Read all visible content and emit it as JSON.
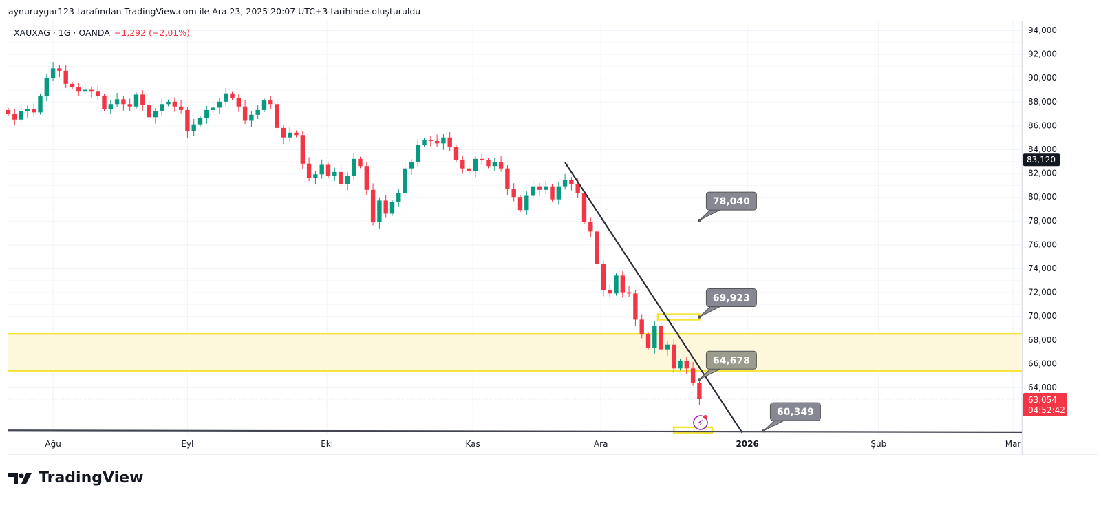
{
  "credit": "aynuruygar123 tarafından TradingView.com ile Ara 23, 2025 20:07 UTC+3 tarihinde oluşturuldu",
  "legend": {
    "symbol": "XAUXAG · 1G · OANDA",
    "change": "−1,292 (−2,01%)"
  },
  "brand": "TradingView",
  "colors": {
    "up": "#089981",
    "down": "#f23645",
    "zone": "#f5e43a",
    "callout": "#868993",
    "callout_alt": "#9c9c8c"
  },
  "chart_data": {
    "type": "candlestick",
    "title": "XAUXAG · 1G · OANDA",
    "ylim": [
      60000,
      95000
    ],
    "y_ticks": [
      "94,000",
      "92,000",
      "90,000",
      "88,000",
      "86,000",
      "84,000",
      "82,000",
      "80,000",
      "78,000",
      "76,000",
      "74,000",
      "72,000",
      "70,000",
      "68,000",
      "66,000",
      "64,000"
    ],
    "y_tick_values": [
      94000,
      92000,
      90000,
      88000,
      86000,
      84000,
      82000,
      80000,
      78000,
      76000,
      74000,
      72000,
      70000,
      68000,
      66000,
      64000
    ],
    "x_ticks": [
      {
        "label": "Ağu",
        "index": 7
      },
      {
        "label": "Eyl",
        "index": 28
      },
      {
        "label": "Eki",
        "index": 49.8
      },
      {
        "label": "Kas",
        "index": 72.6
      },
      {
        "label": "Ara",
        "index": 92.6
      },
      {
        "label": "2026",
        "index": 115.5
      },
      {
        "label": "Şub",
        "index": 136
      },
      {
        "label": "Mar",
        "index": 157
      }
    ],
    "first_open": 87300,
    "wick_pad": 450,
    "closes": [
      87000,
      86500,
      87200,
      87400,
      87100,
      88500,
      90000,
      90800,
      90600,
      89500,
      89200,
      88900,
      89000,
      88900,
      88500,
      87400,
      87800,
      88200,
      87800,
      87600,
      88600,
      87700,
      86700,
      87200,
      87800,
      88000,
      87600,
      87300,
      85500,
      86100,
      86600,
      87300,
      87500,
      88000,
      88700,
      88300,
      87600,
      86400,
      86900,
      87300,
      88100,
      87800,
      85800,
      85000,
      85400,
      85200,
      82800,
      81600,
      81900,
      82700,
      81800,
      82100,
      81100,
      81800,
      83200,
      82600,
      80600,
      77900,
      79700,
      78600,
      79600,
      80300,
      82400,
      82900,
      84400,
      84800,
      84700,
      84500,
      85000,
      84200,
      83100,
      82400,
      82200,
      83200,
      83100,
      82600,
      82900,
      82400,
      80700,
      80000,
      78900,
      80100,
      80900,
      80600,
      80900,
      79800,
      80900,
      81400,
      81100,
      80300,
      77900,
      77100,
      74400,
      72200,
      71900,
      73400,
      72000,
      71900,
      69700,
      68500,
      67300,
      69200,
      67200,
      67600,
      65600,
      66200,
      65600,
      64400,
      63054
    ],
    "price_labels": {
      "highlight": "83,120",
      "highlight_value": 83120,
      "last": "63,054",
      "last_value": 63054,
      "countdown": "04:52:42"
    },
    "zone": {
      "top": 68500,
      "bottom": 65400
    },
    "trendline": {
      "from": {
        "index": 87,
        "value": 82900
      },
      "to": {
        "index": 114.7,
        "value": 60200
      }
    },
    "baseline": {
      "from_value": 60400,
      "to_value": 60250
    },
    "callouts": [
      {
        "label": "78,040",
        "index": 108,
        "value": 78040
      },
      {
        "label": "69,923",
        "index": 108,
        "value": 69923
      },
      {
        "label": "64,678",
        "index": 108,
        "value": 64678,
        "alt": true
      },
      {
        "label": "60,349",
        "index": 118,
        "value": 60349
      }
    ],
    "rects": [
      {
        "i0": 101.5,
        "i1": 108,
        "value": 69923
      },
      {
        "i0": 104,
        "i1": 110,
        "value": 60420
      }
    ]
  }
}
